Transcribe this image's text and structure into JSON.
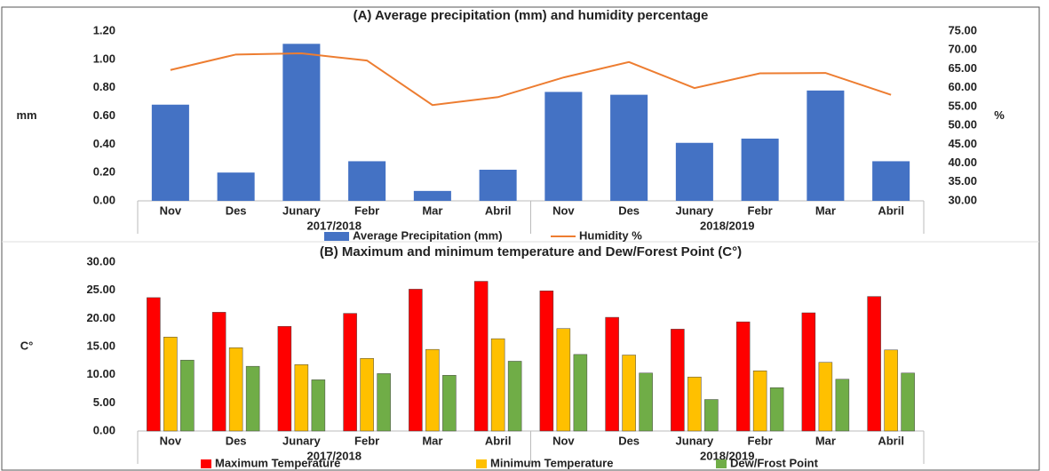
{
  "chart_data": [
    {
      "type": "bar",
      "title": "(A) Average precipitation (mm) and humidity percentage",
      "y_label": "mm",
      "y2_label": "%",
      "categories": [
        "Nov",
        "Des",
        "Junary",
        "Febr",
        "Mar",
        "Abril",
        "Nov",
        "Des",
        "Junary",
        "Febr",
        "Mar",
        "Abril"
      ],
      "groups": [
        "2017/2018",
        "2018/2019"
      ],
      "series": [
        {
          "name": "Average Precipitation (mm)",
          "color": "#4472c4",
          "values": [
            0.68,
            0.2,
            1.11,
            0.28,
            0.07,
            0.22,
            0.77,
            0.75,
            0.41,
            0.44,
            0.78,
            0.28
          ]
        },
        {
          "name": "Humidity %",
          "color": "#ed7d31",
          "axis": "y2",
          "values": [
            64.7,
            68.8,
            69.1,
            67.2,
            55.4,
            57.5,
            62.7,
            66.8,
            59.9,
            63.8,
            63.9,
            58.1
          ]
        }
      ],
      "ylim": [
        0,
        1.2
      ],
      "yticks": [
        {
          "value": 0,
          "label": "0.00"
        },
        {
          "value": 0.2,
          "label": "0.20"
        },
        {
          "value": 0.4,
          "label": "0.40"
        },
        {
          "value": 0.6,
          "label": "0.60"
        },
        {
          "value": 0.8,
          "label": "0.80"
        },
        {
          "value": 1.0,
          "label": "1.00"
        },
        {
          "value": 1.2,
          "label": "1.20"
        }
      ],
      "y2lim": [
        30,
        75
      ],
      "y2ticks": [
        {
          "value": 30,
          "label": "30.00"
        },
        {
          "value": 35,
          "label": "35.00"
        },
        {
          "value": 40,
          "label": "40.00"
        },
        {
          "value": 45,
          "label": "45.00"
        },
        {
          "value": 50,
          "label": "50.00"
        },
        {
          "value": 55,
          "label": "55.00"
        },
        {
          "value": 60,
          "label": "60.00"
        },
        {
          "value": 65,
          "label": "65.00"
        },
        {
          "value": 70,
          "label": "70.00"
        },
        {
          "value": 75,
          "label": "75.00"
        }
      ],
      "grid": false
    },
    {
      "type": "bar",
      "title": "(B) Maximum and minimum temperature and Dew/Forest Point (C°)",
      "y_label": "C°",
      "categories": [
        "Nov",
        "Des",
        "Junary",
        "Febr",
        "Mar",
        "Abril",
        "Nov",
        "Des",
        "Junary",
        "Febr",
        "Mar",
        "Abril"
      ],
      "groups": [
        "2017/2018",
        "2018/2019"
      ],
      "series": [
        {
          "name": "Maximum Temperature",
          "color": "#ff0000",
          "values": [
            23.7,
            21.1,
            18.6,
            20.9,
            25.2,
            26.6,
            24.9,
            20.2,
            18.1,
            19.4,
            21.0,
            23.9
          ]
        },
        {
          "name": "Minimum Temperature",
          "color": "#ffc000",
          "values": [
            16.7,
            14.8,
            11.8,
            12.9,
            14.5,
            16.4,
            18.2,
            13.5,
            9.6,
            10.7,
            12.2,
            14.4
          ]
        },
        {
          "name": "Dew/Frost Point",
          "color": "#70ad47",
          "values": [
            12.6,
            11.5,
            9.1,
            10.2,
            9.9,
            12.4,
            13.6,
            10.3,
            5.6,
            7.7,
            9.2,
            10.3
          ]
        }
      ],
      "ylim": [
        0,
        30
      ],
      "yticks": [
        {
          "value": 0,
          "label": "0.00"
        },
        {
          "value": 5,
          "label": "5.00"
        },
        {
          "value": 10,
          "label": "10.00"
        },
        {
          "value": 15,
          "label": "15.00"
        },
        {
          "value": 20,
          "label": "20.00"
        },
        {
          "value": 25,
          "label": "25.00"
        },
        {
          "value": 30,
          "label": "30.00"
        }
      ],
      "grid": false
    }
  ]
}
